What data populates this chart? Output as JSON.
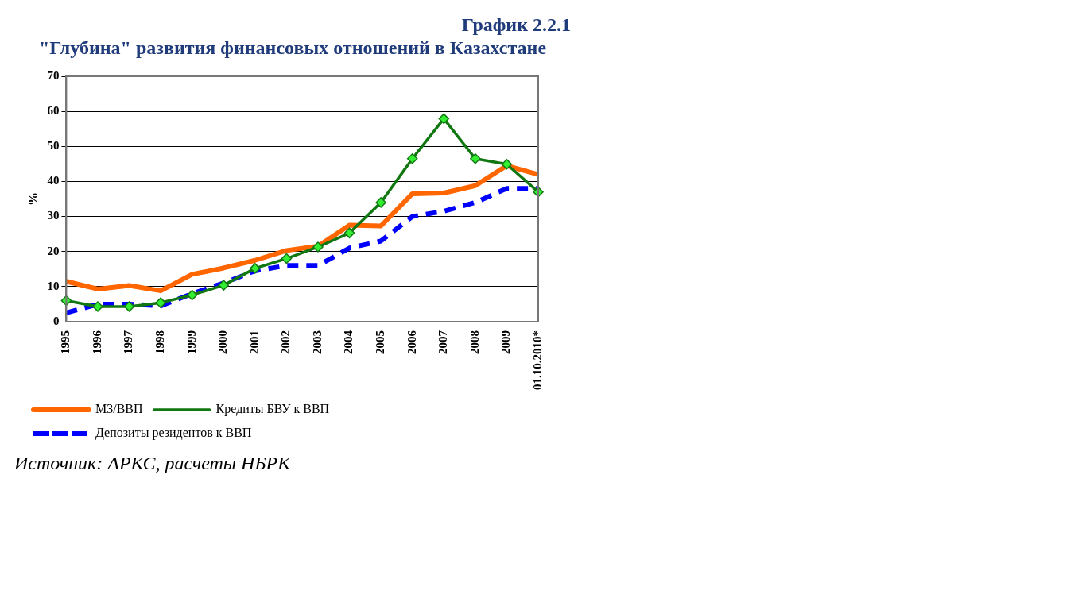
{
  "chart_data": {
    "type": "line",
    "title": "\"Глубина\" развития финансовых отношений в Казахстане",
    "subtitle": "График 2.2.1",
    "ylabel": "%",
    "categories": [
      "1995",
      "1996",
      "1997",
      "1998",
      "1999",
      "2000",
      "2001",
      "2002",
      "2003",
      "2004",
      "2005",
      "2006",
      "2007",
      "2008",
      "2009",
      "01.10.2010*"
    ],
    "series": [
      {
        "name": "М3/ВВП",
        "color": "#ff6600",
        "line_style": "solid",
        "marker": "none",
        "values": [
          11.5,
          9.3,
          10.3,
          8.8,
          13.5,
          15.3,
          17.5,
          20.3,
          21.5,
          27.5,
          27.3,
          36.5,
          36.7,
          38.8,
          44.5,
          42
        ]
      },
      {
        "name": "Кредиты БВУ к ВВП",
        "color": "#117711",
        "line_style": "solid",
        "marker": "diamond",
        "values": [
          6,
          4.3,
          4.3,
          5.4,
          7.6,
          10.4,
          15.2,
          18,
          21.3,
          25.3,
          34,
          46.5,
          57.9,
          46.5,
          44.9,
          37
        ]
      },
      {
        "name": "Депозиты резидентов к ВВП",
        "color": "#0000ff",
        "line_style": "dashed",
        "marker": "none",
        "values": [
          2.5,
          5,
          5,
          4.5,
          8,
          11,
          14.5,
          16,
          16,
          21,
          23,
          30,
          31.5,
          34,
          38,
          38
        ]
      }
    ],
    "ylim": [
      0,
      70
    ],
    "yticks": [
      0,
      10,
      20,
      30,
      40,
      50,
      60,
      70
    ],
    "grid": "y",
    "legend": "bottom",
    "annotations": [
      "Источник: АРКС, расчеты НБРК"
    ]
  }
}
